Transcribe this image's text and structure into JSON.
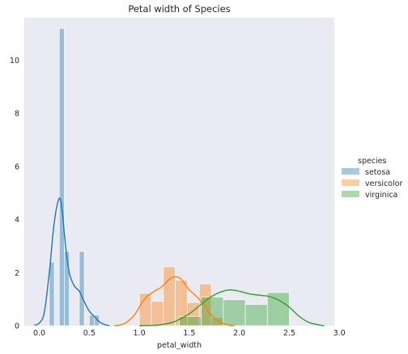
{
  "chart_data": {
    "type": "histogram",
    "title": "Petal width of Species",
    "xlabel": "petal_width",
    "ylabel": "",
    "xlim": [
      -0.15,
      2.95
    ],
    "ylim": [
      0,
      11.6
    ],
    "xticks": [
      0.0,
      0.5,
      1.0,
      1.5,
      2.0,
      2.5,
      3.0
    ],
    "xtick_labels": [
      "0.0",
      "0.5",
      "1.0",
      "1.5",
      "2.0",
      "2.5",
      "3.0"
    ],
    "yticks": [
      0,
      2,
      4,
      6,
      8,
      10
    ],
    "ytick_labels": [
      "0",
      "2",
      "4",
      "6",
      "8",
      "10"
    ],
    "grid": false,
    "background": "#eaeaf2",
    "legend": {
      "title": "species",
      "position": "right"
    },
    "series": [
      {
        "name": "setosa",
        "color": "#1f77b4",
        "bins": [
          {
            "x0": 0.1,
            "x1": 0.15,
            "h": 2.4
          },
          {
            "x0": 0.15,
            "x1": 0.2,
            "h": 0
          },
          {
            "x0": 0.2,
            "x1": 0.25,
            "h": 11.2
          },
          {
            "x0": 0.25,
            "x1": 0.3,
            "h": 2.8
          },
          {
            "x0": 0.3,
            "x1": 0.35,
            "h": 0
          },
          {
            "x0": 0.35,
            "x1": 0.4,
            "h": 0
          },
          {
            "x0": 0.4,
            "x1": 0.45,
            "h": 2.8
          },
          {
            "x0": 0.45,
            "x1": 0.5,
            "h": 0
          },
          {
            "x0": 0.5,
            "x1": 0.55,
            "h": 0.4
          },
          {
            "x0": 0.55,
            "x1": 0.6,
            "h": 0.4
          }
        ],
        "kde": [
          [
            -0.05,
            0.02
          ],
          [
            0.0,
            0.1
          ],
          [
            0.05,
            0.5
          ],
          [
            0.1,
            2.0
          ],
          [
            0.15,
            3.9
          ],
          [
            0.2,
            4.8
          ],
          [
            0.23,
            4.3
          ],
          [
            0.26,
            3.1
          ],
          [
            0.3,
            2.0
          ],
          [
            0.35,
            1.5
          ],
          [
            0.4,
            1.3
          ],
          [
            0.45,
            0.9
          ],
          [
            0.5,
            0.55
          ],
          [
            0.55,
            0.35
          ],
          [
            0.6,
            0.15
          ],
          [
            0.65,
            0.05
          ],
          [
            0.7,
            0.0
          ]
        ]
      },
      {
        "name": "versicolor",
        "color": "#ff7f0e",
        "bins": [
          {
            "x0": 1.0,
            "x1": 1.12,
            "h": 1.22
          },
          {
            "x0": 1.12,
            "x1": 1.24,
            "h": 0.92
          },
          {
            "x0": 1.24,
            "x1": 1.36,
            "h": 2.22
          },
          {
            "x0": 1.36,
            "x1": 1.48,
            "h": 1.72
          },
          {
            "x0": 1.48,
            "x1": 1.6,
            "h": 0.88
          },
          {
            "x0": 1.6,
            "x1": 1.72,
            "h": 1.58
          },
          {
            "x0": 1.72,
            "x1": 1.84,
            "h": 0.32
          }
        ],
        "kde": [
          [
            0.75,
            0.0
          ],
          [
            0.85,
            0.08
          ],
          [
            0.95,
            0.4
          ],
          [
            1.05,
            1.0
          ],
          [
            1.15,
            1.3
          ],
          [
            1.22,
            1.45
          ],
          [
            1.3,
            1.75
          ],
          [
            1.36,
            1.85
          ],
          [
            1.42,
            1.75
          ],
          [
            1.5,
            1.35
          ],
          [
            1.6,
            1.0
          ],
          [
            1.7,
            0.5
          ],
          [
            1.8,
            0.15
          ],
          [
            1.9,
            0.02
          ],
          [
            1.95,
            0.0
          ]
        ]
      },
      {
        "name": "virginica",
        "color": "#2ca02c",
        "bins": [
          {
            "x0": 1.4,
            "x1": 1.62,
            "h": 0.35
          },
          {
            "x0": 1.62,
            "x1": 1.84,
            "h": 1.08
          },
          {
            "x0": 1.84,
            "x1": 2.06,
            "h": 0.98
          },
          {
            "x0": 2.06,
            "x1": 2.28,
            "h": 0.8
          },
          {
            "x0": 2.28,
            "x1": 2.5,
            "h": 1.25
          }
        ],
        "kde": [
          [
            1.0,
            0.0
          ],
          [
            1.2,
            0.03
          ],
          [
            1.35,
            0.15
          ],
          [
            1.5,
            0.45
          ],
          [
            1.6,
            0.75
          ],
          [
            1.7,
            1.05
          ],
          [
            1.8,
            1.25
          ],
          [
            1.9,
            1.35
          ],
          [
            2.0,
            1.3
          ],
          [
            2.1,
            1.2
          ],
          [
            2.2,
            1.15
          ],
          [
            2.3,
            1.1
          ],
          [
            2.4,
            0.95
          ],
          [
            2.5,
            0.7
          ],
          [
            2.6,
            0.35
          ],
          [
            2.7,
            0.12
          ],
          [
            2.8,
            0.03
          ],
          [
            2.85,
            0.0
          ]
        ]
      }
    ]
  }
}
